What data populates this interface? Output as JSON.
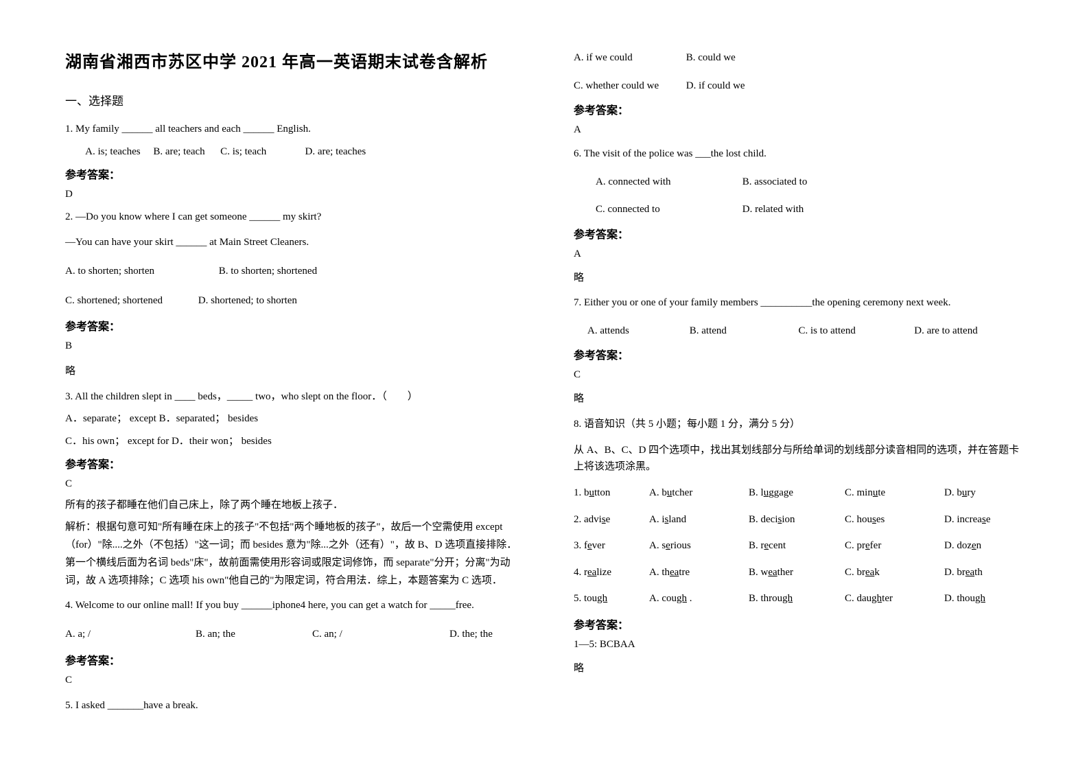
{
  "title": "湖南省湘西市苏区中学 2021 年高一英语期末试卷含解析",
  "section1": "一、选择题",
  "q1": {
    "stem": "1. My family ______ all teachers and each ______ English.",
    "opts": "        A. is; teaches     B. are; teach      C. is; teach               D. are; teaches",
    "ansLabel": "参考答案：",
    "ans": "D"
  },
  "q2": {
    "stem1": "2. —Do you know where I can get someone ______ my skirt?",
    "stem2": "   —You can have your skirt ______ at Main Street Cleaners.",
    "optA": "A. to shorten; shorten",
    "optB": "B. to shorten; shortened",
    "optC": "C. shortened; shortened",
    "optD": "D. shortened; to shorten",
    "ansLabel": "参考答案：",
    "ans": "B",
    "note": "略"
  },
  "q3": {
    "stem": "3. All the children slept in ____ beds，_____ two，who slept on the floor．（　　）",
    "optsAB": "A．separate； except   B．separated； besides",
    "optsCD": "C．his own； except for      D．their won； besides",
    "ansLabel": "参考答案：",
    "ans": "C",
    "exp1": "所有的孩子都睡在他们自己床上，除了两个睡在地板上孩子．",
    "exp2": "解析：根据句意可知\"所有睡在床上的孩子\"不包括\"两个睡地板的孩子\"，故后一个空需使用 except（for）\"除....之外（不包括）\"这一词；而 besides 意为\"除...之外（还有）\"，故 B、D 选项直接排除．第一个横线后面为名词 beds\"床\"，故前面需使用形容词或限定词修饰，而 separate\"分开；分离\"为动词，故 A 选项排除；C 选项 his own\"他自己的\"为限定词，符合用法．综上，本题答案为 C 选项．"
  },
  "q4": {
    "stem": "4. Welcome to our online mall! If you buy ______iphone4 here, you can get a watch for _____free.",
    "optA": "A. a; /",
    "optB": "B. an; the",
    "optC": "C. an; /",
    "optD": "D. the; the",
    "ansLabel": "参考答案：",
    "ans": "C"
  },
  "q5": {
    "stem": "5.  I asked _______have a break.",
    "optA": "A. if we could",
    "optB": "B. could we",
    "optC": "C. whether could we",
    "optD": "D. if could we",
    "ansLabel": "参考答案：",
    "ans": "A"
  },
  "q6": {
    "stem": "6. The visit of the police was ___the lost child.",
    "optA": "A. connected with",
    "optB": "B. associated to",
    "optC": "C. connected to",
    "optD": "D. related with",
    "ansLabel": "参考答案：",
    "ans": "A",
    "note": "略"
  },
  "q7": {
    "stem": "7. Either you or one of your family members __________the opening ceremony next week.",
    "optA": "A. attends",
    "optB": "B. attend",
    "optC": "C. is to attend",
    "optD": "D. are to attend",
    "ansLabel": "参考答案：",
    "ans": "C",
    "note": "略"
  },
  "q8": {
    "header": "8. 语音知识（共 5 小题；每小题 1 分，满分 5 分）",
    "instr": "从 A、B、C、D 四个选项中，找出其划线部分与所给单词的划线部分读音相同的选项，并在答题卡上将该选项涂黑。",
    "rows": [
      {
        "n": "1.",
        "w": "b",
        "wu": "u",
        "wr": "tton",
        "a": "A. b",
        "au": "u",
        "ar": "tcher",
        "b": "B. l",
        "bu": "u",
        "br": "ggage",
        "c": "C. min",
        "cu": "u",
        "cr": "te",
        "d": "D. b",
        "du": "u",
        "dr": "ry"
      },
      {
        "n": "2.",
        "w": "advi",
        "wu": "s",
        "wr": "e",
        "a": "A. i",
        "au": "s",
        "ar": "land",
        "b": "B. deci",
        "bu": "s",
        "br": "ion",
        "c": "C. hou",
        "cu": "s",
        "cr": "es",
        "d": "D. increa",
        "du": "s",
        "dr": "e"
      },
      {
        "n": "3.",
        "w": "f",
        "wu": "e",
        "wr": "ver",
        "a": "A. s",
        "au": "e",
        "ar": "rious",
        "b": "B. r",
        "bu": "e",
        "br": "cent",
        "c": "C. pr",
        "cu": "e",
        "cr": "fer",
        "d": "D. doz",
        "du": "e",
        "dr": "n"
      },
      {
        "n": "4.",
        "w": "r",
        "wu": "ea",
        "wr": "lize",
        "a": "A. th",
        "au": "ea",
        "ar": "tre",
        "b": "B. w",
        "bu": "ea",
        "br": "ther",
        "c": "C. br",
        "cu": "ea",
        "cr": "k",
        "d": "D. br",
        "du": "ea",
        "dr": "th"
      },
      {
        "n": "5.",
        "w": "tou",
        "wu": "gh",
        "wr": "",
        "a": "A. cou",
        "au": "gh",
        "ar": " .",
        "b": "B. throu",
        "bu": "gh",
        "br": "",
        "c": "C. dau",
        "cu": "gh",
        "cr": "ter",
        "d": "D. thou",
        "du": "gh",
        "dr": ""
      }
    ],
    "ansLabel": "参考答案：",
    "ans": "1—5:  BCBAA",
    "note": "略"
  }
}
